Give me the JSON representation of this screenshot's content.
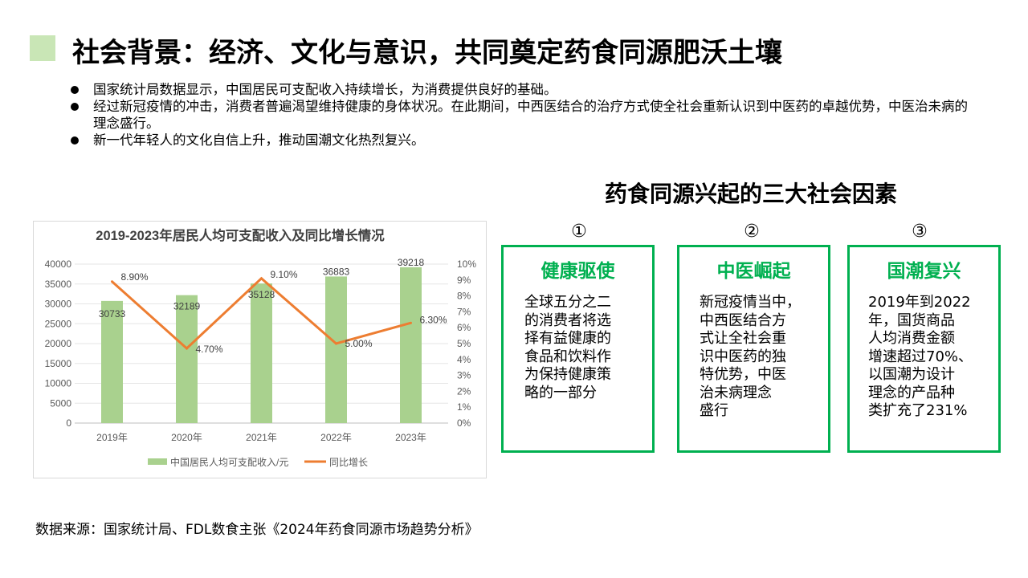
{
  "header": {
    "title": "社会背景：经济、文化与意识，共同奠定药食同源肥沃土壤"
  },
  "bullets": [
    "国家统计局数据显示，中国居民可支配收入持续增长，为消费提供良好的基础。",
    "经过新冠疫情的冲击，消费者普遍渴望维持健康的身体状况。在此期间，中西医结合的治疗方式使全社会重新认识到中医药的卓越优势，中医治未病的理念盛行。",
    "新一代年轻人的文化自信上升，推动国潮文化热烈复兴。"
  ],
  "factors": {
    "title": "药食同源兴起的三大社会因素",
    "cards": [
      {
        "num": "①",
        "heading": "健康驱使",
        "lines": [
          "全球五分之二",
          "的消费者将选",
          "择有益健康的",
          "食品和饮料作",
          "为保持健康策",
          "略的一部分"
        ]
      },
      {
        "num": "②",
        "heading": "中医崛起",
        "lines": [
          "新冠疫情当中，",
          "中西医结合方",
          "式让全社会重",
          "识中医药的独",
          "特优势，中医",
          "治未病理念",
          "盛行"
        ]
      },
      {
        "num": "③",
        "heading": "国潮复兴",
        "lines": [
          "2019年到2022",
          "年，国货商品",
          "人均消费金额",
          "增速超过70%、",
          "以国潮为设计",
          "理念的产品种",
          "类扩充了231%"
        ]
      }
    ],
    "accent": "#00b050"
  },
  "source": "数据来源：国家统计局、FDL数食主张《2024年药食同源市场趋势分析》",
  "chart_data": {
    "type": "bar+line",
    "title": "2019-2023年居民人均可支配收入及同比增长情况",
    "categories": [
      "2019年",
      "2020年",
      "2021年",
      "2022年",
      "2023年"
    ],
    "series": [
      {
        "name": "中国居民人均可支配收入/元",
        "type": "bar",
        "axis": "left",
        "values": [
          30733,
          32189,
          35128,
          36883,
          39218
        ],
        "labels": [
          "30733",
          "32189",
          "35128",
          "36883",
          "39218"
        ],
        "color": "#a9d18e"
      },
      {
        "name": "同比增长",
        "type": "line",
        "axis": "right",
        "values": [
          8.9,
          4.7,
          9.1,
          5.0,
          6.3
        ],
        "labels": [
          "8.90%",
          "4.70%",
          "9.10%",
          "5.00%",
          "6.30%"
        ],
        "color": "#ed7d31"
      }
    ],
    "ylim_left": [
      0,
      40000
    ],
    "yticks_left": [
      "0",
      "5000",
      "10000",
      "15000",
      "20000",
      "25000",
      "30000",
      "35000",
      "40000"
    ],
    "ylim_right": [
      0,
      10
    ],
    "yticks_right": [
      "0%",
      "1%",
      "2%",
      "3%",
      "4%",
      "5%",
      "6%",
      "7%",
      "8%",
      "9%",
      "10%"
    ],
    "grid": true,
    "legend": "bottom"
  }
}
